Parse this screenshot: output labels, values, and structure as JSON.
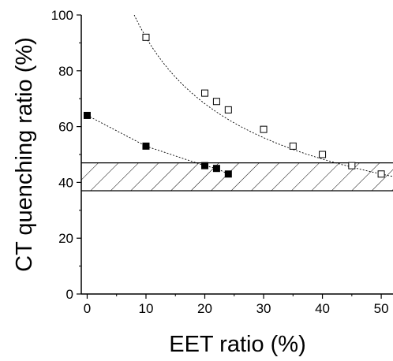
{
  "chart_data": {
    "type": "scatter",
    "title": "",
    "xlabel": "EET ratio (%)",
    "ylabel": "CT quenching ratio (%)",
    "xlim": [
      -1,
      52
    ],
    "ylim": [
      0,
      100
    ],
    "xticks": [
      0,
      10,
      20,
      30,
      40,
      50
    ],
    "yticks": [
      0,
      20,
      40,
      60,
      80,
      100
    ],
    "grid": false,
    "legend": "none",
    "series": [
      {
        "marker": "open-square",
        "line": "dotted-fit",
        "x": [
          10,
          20,
          22,
          24,
          30,
          35,
          40,
          45,
          50
        ],
        "y": [
          92,
          72,
          69,
          66,
          59,
          53,
          50,
          46,
          43
        ]
      },
      {
        "marker": "filled-square",
        "line": "dotted-fit",
        "x": [
          0,
          10,
          20,
          22,
          24
        ],
        "y": [
          64,
          53,
          46,
          45,
          43
        ]
      }
    ],
    "bands": [
      {
        "y_from": 37,
        "y_to": 47,
        "fill": "diagonal-hatch"
      }
    ],
    "colors": {
      "axis": "#000000",
      "markers": "#000000",
      "background": "#ffffff"
    }
  }
}
